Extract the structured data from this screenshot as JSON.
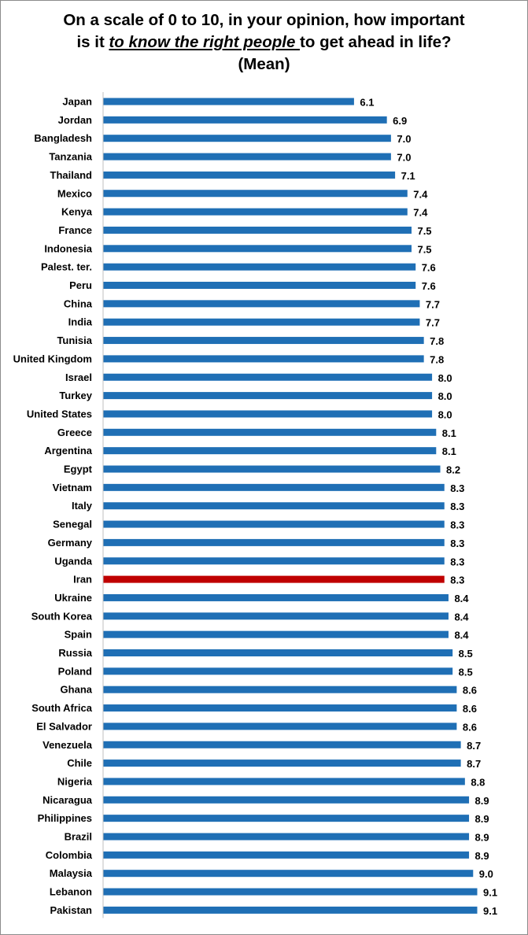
{
  "chart_data": {
    "type": "bar",
    "orientation": "horizontal",
    "title": {
      "line1": "On a scale of 0 to 10, in your opinion, how important",
      "line2_prefix": "is it ",
      "line2_emphasis": "to know the right people ",
      "line2_suffix": "to get ahead in life?",
      "line3": "(Mean)"
    },
    "xlim": [
      0,
      9.1
    ],
    "grid": false,
    "legend": "none",
    "colors": {
      "default": "#1f6fb5",
      "highlight": "#c00000"
    },
    "highlight_category": "Iran",
    "categories": [
      "Japan",
      "Jordan",
      "Bangladesh",
      "Tanzania",
      "Thailand",
      "Mexico",
      "Kenya",
      "France",
      "Indonesia",
      "Palest. ter.",
      "Peru",
      "China",
      "India",
      "Tunisia",
      "United Kingdom",
      "Israel",
      "Turkey",
      "United States",
      "Greece",
      "Argentina",
      "Egypt",
      "Vietnam",
      "Italy",
      "Senegal",
      "Germany",
      "Uganda",
      "Iran",
      "Ukraine",
      "South Korea",
      "Spain",
      "Russia",
      "Poland",
      "Ghana",
      "South Africa",
      "El Salvador",
      "Venezuela",
      "Chile",
      "Nigeria",
      "Nicaragua",
      "Philippines",
      "Brazil",
      "Colombia",
      "Malaysia",
      "Lebanon",
      "Pakistan"
    ],
    "values": [
      6.1,
      6.9,
      7.0,
      7.0,
      7.1,
      7.4,
      7.4,
      7.5,
      7.5,
      7.6,
      7.6,
      7.7,
      7.7,
      7.8,
      7.8,
      8.0,
      8.0,
      8.0,
      8.1,
      8.1,
      8.2,
      8.3,
      8.3,
      8.3,
      8.3,
      8.3,
      8.3,
      8.4,
      8.4,
      8.4,
      8.5,
      8.5,
      8.6,
      8.6,
      8.6,
      8.7,
      8.7,
      8.8,
      8.9,
      8.9,
      8.9,
      8.9,
      9.0,
      9.1,
      9.1
    ],
    "value_labels": [
      "6.1",
      "6.9",
      "7.0",
      "7.0",
      "7.1",
      "7.4",
      "7.4",
      "7.5",
      "7.5",
      "7.6",
      "7.6",
      "7.7",
      "7.7",
      "7.8",
      "7.8",
      "8.0",
      "8.0",
      "8.0",
      "8.1",
      "8.1",
      "8.2",
      "8.3",
      "8.3",
      "8.3",
      "8.3",
      "8.3",
      "8.3",
      "8.4",
      "8.4",
      "8.4",
      "8.5",
      "8.5",
      "8.6",
      "8.6",
      "8.6",
      "8.7",
      "8.7",
      "8.8",
      "8.9",
      "8.9",
      "8.9",
      "8.9",
      "9.0",
      "9.1",
      "9.1"
    ]
  }
}
